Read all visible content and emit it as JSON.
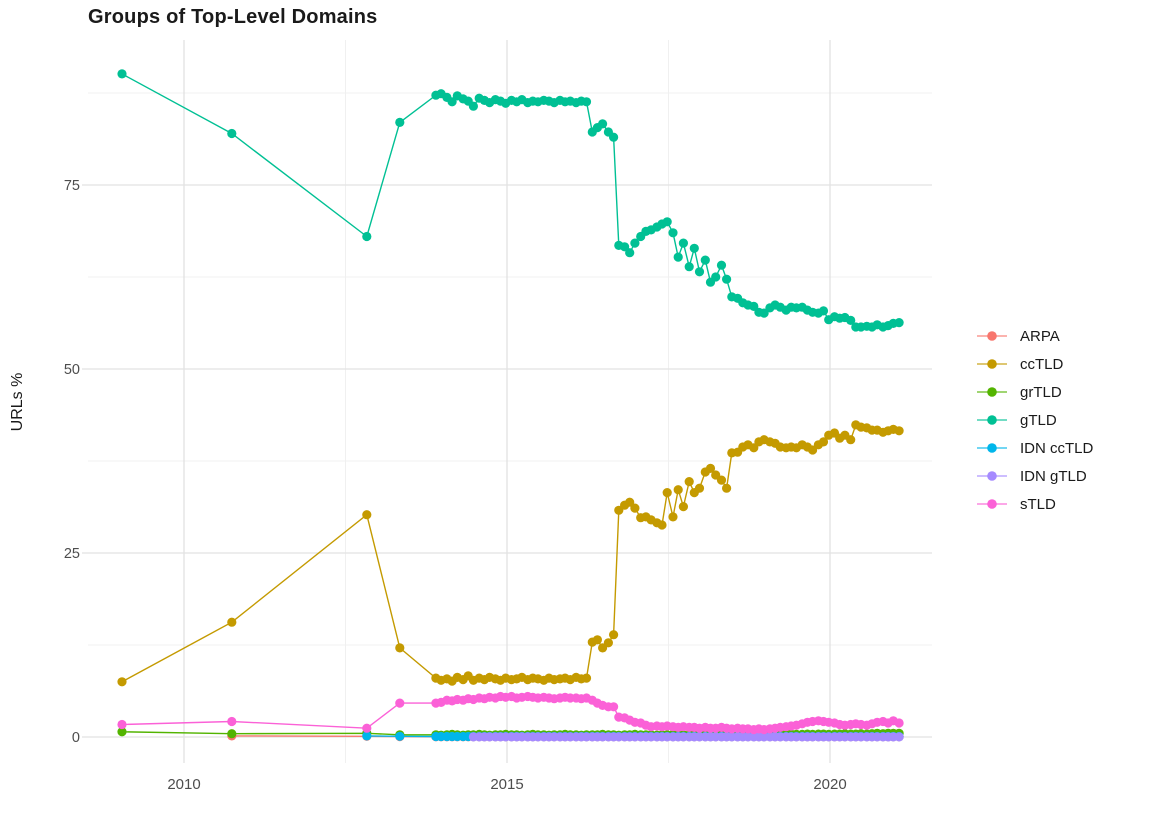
{
  "figure": {
    "background": "#FFFFFF",
    "axis_text_color": "#4D4D4D",
    "grid_major_color": "#E2E2E2",
    "grid_minor_color": "#F0F0F0"
  },
  "chart_data": {
    "type": "line",
    "title": "Groups of Top-Level Domains",
    "ylabel": "URLs %",
    "xlabel": "",
    "grid": "on",
    "legend_position": "right",
    "x_axis": {
      "labels": [
        "2010",
        "2015",
        "2020"
      ],
      "major": [
        2010,
        2015,
        2020
      ],
      "minor": [
        2012.5,
        2017.5
      ],
      "range": [
        2008.51,
        2021.58
      ]
    },
    "y_axis": {
      "labels": [
        "0",
        "25",
        "50",
        "75"
      ],
      "major": [
        0,
        25,
        50,
        75
      ],
      "minor": [
        12.5,
        37.5,
        62.5,
        87.5
      ],
      "range": [
        -3.5,
        94.7
      ]
    },
    "x_dense": [
      2013.9,
      2013.98,
      2014.07,
      2014.15,
      2014.23,
      2014.32,
      2014.4,
      2014.48,
      2014.57,
      2014.65,
      2014.73,
      2014.82,
      2014.9,
      2014.98,
      2015.07,
      2015.15,
      2015.23,
      2015.32,
      2015.4,
      2015.48,
      2015.57,
      2015.65,
      2015.73,
      2015.82,
      2015.9,
      2015.98,
      2016.07,
      2016.15,
      2016.23,
      2016.32,
      2016.4,
      2016.48,
      2016.57,
      2016.65,
      2016.73,
      2016.82,
      2016.9,
      2016.98,
      2017.07,
      2017.15,
      2017.23,
      2017.32,
      2017.4,
      2017.48,
      2017.57,
      2017.65,
      2017.73,
      2017.82,
      2017.9,
      2017.98,
      2018.07,
      2018.15,
      2018.23,
      2018.32,
      2018.4,
      2018.48,
      2018.57,
      2018.65,
      2018.73,
      2018.82,
      2018.9,
      2018.98,
      2019.07,
      2019.15,
      2019.23,
      2019.32,
      2019.4,
      2019.48,
      2019.57,
      2019.65,
      2019.73,
      2019.82,
      2019.9,
      2019.98,
      2020.07,
      2020.15,
      2020.23,
      2020.32,
      2020.4,
      2020.48,
      2020.57,
      2020.65,
      2020.73,
      2020.82,
      2020.9,
      2020.98,
      2021.07
    ],
    "series": [
      {
        "name": "ARPA",
        "color": "#F8766D",
        "sparse": [
          [
            2010.74,
            0.15
          ],
          [
            2012.83,
            0.1
          ],
          [
            2013.34,
            0.05
          ]
        ],
        "dense_fill": 0.03
      },
      {
        "name": "ccTLD",
        "color": "#C49A00",
        "sparse": [
          [
            2009.04,
            7.5
          ],
          [
            2010.74,
            15.6
          ],
          [
            2012.83,
            30.2
          ],
          [
            2013.34,
            12.1
          ]
        ],
        "dense": [
          8.0,
          7.7,
          7.9,
          7.6,
          8.1,
          7.8,
          8.3,
          7.7,
          8.0,
          7.8,
          8.1,
          7.9,
          7.7,
          8.0,
          7.8,
          7.9,
          8.1,
          7.8,
          8.0,
          7.9,
          7.7,
          8.0,
          7.8,
          7.9,
          8.0,
          7.8,
          8.1,
          7.9,
          8.0,
          12.9,
          13.2,
          12.1,
          12.8,
          13.9,
          30.8,
          31.5,
          31.9,
          31.1,
          29.8,
          29.9,
          29.5,
          29.1,
          28.8,
          33.2,
          29.9,
          33.6,
          31.3,
          34.7,
          33.2,
          33.8,
          36.0,
          36.5,
          35.6,
          34.9,
          33.8,
          38.6,
          38.7,
          39.4,
          39.7,
          39.3,
          40.1,
          40.4,
          40.1,
          39.9,
          39.4,
          39.3,
          39.4,
          39.3,
          39.7,
          39.4,
          39.0,
          39.7,
          40.1,
          41.0,
          41.3,
          40.6,
          41.0,
          40.4,
          42.4,
          42.1,
          42.0,
          41.7,
          41.7,
          41.4,
          41.6,
          41.8,
          41.6
        ]
      },
      {
        "name": "grTLD",
        "color": "#53B400",
        "sparse": [
          [
            2009.04,
            0.7
          ],
          [
            2010.74,
            0.45
          ],
          [
            2012.83,
            0.5
          ],
          [
            2013.34,
            0.3
          ]
        ],
        "dense": [
          0.3,
          0.25,
          0.3,
          0.35,
          0.3,
          0.25,
          0.3,
          0.3,
          0.35,
          0.3,
          0.25,
          0.3,
          0.3,
          0.35,
          0.3,
          0.3,
          0.25,
          0.3,
          0.35,
          0.3,
          0.3,
          0.25,
          0.3,
          0.3,
          0.35,
          0.3,
          0.3,
          0.25,
          0.3,
          0.3,
          0.3,
          0.35,
          0.3,
          0.3,
          0.25,
          0.3,
          0.3,
          0.35,
          0.3,
          0.3,
          0.3,
          0.25,
          0.3,
          0.3,
          0.35,
          0.3,
          0.3,
          0.3,
          0.35,
          0.3,
          0.3,
          0.35,
          0.3,
          0.3,
          0.35,
          0.3,
          0.35,
          0.3,
          0.35,
          0.35,
          0.3,
          0.35,
          0.35,
          0.3,
          0.35,
          0.35,
          0.4,
          0.35,
          0.35,
          0.4,
          0.35,
          0.4,
          0.4,
          0.35,
          0.4,
          0.4,
          0.45,
          0.4,
          0.4,
          0.45,
          0.4,
          0.45,
          0.5,
          0.45,
          0.5,
          0.5,
          0.5
        ]
      },
      {
        "name": "gTLD",
        "color": "#00C094",
        "sparse": [
          [
            2009.04,
            90.1
          ],
          [
            2010.74,
            82.0
          ],
          [
            2012.83,
            68.0
          ],
          [
            2013.34,
            83.5
          ]
        ],
        "dense": [
          87.2,
          87.4,
          86.9,
          86.3,
          87.1,
          86.7,
          86.4,
          85.7,
          86.8,
          86.5,
          86.2,
          86.6,
          86.4,
          86.1,
          86.5,
          86.3,
          86.6,
          86.2,
          86.4,
          86.3,
          86.5,
          86.4,
          86.2,
          86.5,
          86.3,
          86.4,
          86.2,
          86.4,
          86.3,
          82.2,
          82.8,
          83.3,
          82.2,
          81.5,
          66.8,
          66.6,
          65.8,
          67.1,
          68.0,
          68.7,
          68.9,
          69.3,
          69.7,
          70.0,
          68.5,
          65.2,
          67.1,
          63.9,
          66.4,
          63.2,
          64.8,
          61.8,
          62.5,
          64.1,
          62.2,
          59.8,
          59.6,
          59.0,
          58.7,
          58.5,
          57.7,
          57.6,
          58.3,
          58.7,
          58.4,
          58.0,
          58.4,
          58.3,
          58.4,
          58.0,
          57.7,
          57.6,
          57.9,
          56.7,
          57.1,
          56.9,
          57.0,
          56.6,
          55.7,
          55.7,
          55.8,
          55.7,
          56.0,
          55.7,
          55.9,
          56.2,
          56.3
        ]
      },
      {
        "name": "IDN ccTLD",
        "color": "#00B6EB",
        "sparse": [
          [
            2012.83,
            0.15
          ],
          [
            2013.34,
            0.1
          ]
        ],
        "dense_fill": 0.07
      },
      {
        "name": "IDN gTLD",
        "color": "#A58AFF",
        "sparse": [],
        "dense_fill": 0.02,
        "dense_from_index": 7
      },
      {
        "name": "sTLD",
        "color": "#FB61D7",
        "sparse": [
          [
            2009.04,
            1.7
          ],
          [
            2010.74,
            2.1
          ],
          [
            2012.83,
            1.2
          ],
          [
            2013.34,
            4.6
          ]
        ],
        "dense": [
          4.6,
          4.7,
          5.0,
          4.9,
          5.1,
          5.0,
          5.2,
          5.1,
          5.3,
          5.2,
          5.4,
          5.3,
          5.5,
          5.4,
          5.5,
          5.3,
          5.4,
          5.5,
          5.4,
          5.3,
          5.4,
          5.3,
          5.2,
          5.3,
          5.4,
          5.3,
          5.3,
          5.2,
          5.3,
          5.0,
          4.6,
          4.3,
          4.1,
          4.1,
          2.7,
          2.6,
          2.3,
          2.0,
          1.9,
          1.6,
          1.4,
          1.5,
          1.4,
          1.5,
          1.4,
          1.3,
          1.4,
          1.3,
          1.3,
          1.2,
          1.3,
          1.2,
          1.2,
          1.3,
          1.2,
          1.1,
          1.2,
          1.1,
          1.1,
          1.0,
          1.1,
          1.0,
          1.1,
          1.2,
          1.3,
          1.4,
          1.5,
          1.6,
          1.8,
          2.0,
          2.1,
          2.2,
          2.1,
          2.0,
          1.9,
          1.7,
          1.6,
          1.7,
          1.8,
          1.7,
          1.6,
          1.8,
          2.0,
          2.1,
          1.9,
          2.2,
          1.9
        ]
      }
    ]
  }
}
